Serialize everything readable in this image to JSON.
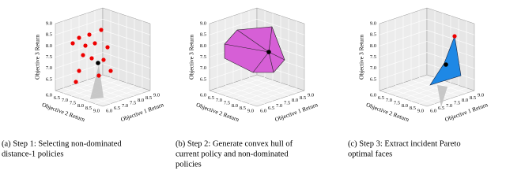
{
  "axis_labels": {
    "x": "Objective 1 Return",
    "y": "Objective 2 Return",
    "z": "Objective 3 Return"
  },
  "ticks": [
    "6.0",
    "6.5",
    "7.0",
    "7.5",
    "8.0",
    "8.5",
    "9.0"
  ],
  "panels": [
    {
      "caption": [
        "(a) Step 1: Selecting non-dominated",
        "distance-1 policies"
      ]
    },
    {
      "caption": [
        "(b) Step 2: Generate convex hull of",
        "current policy and non-dominated",
        "policies"
      ]
    },
    {
      "caption": [
        "(c) Step 3: Extract incident Pareto",
        "optimal faces"
      ]
    }
  ]
}
